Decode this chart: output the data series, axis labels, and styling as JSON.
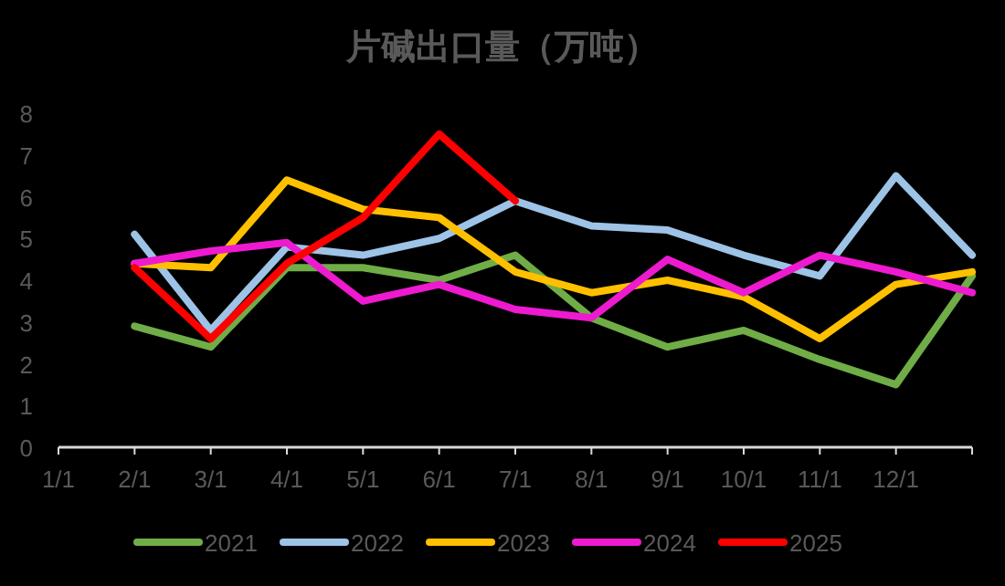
{
  "chart_data": {
    "type": "line",
    "title": "片碱出口量（万吨）",
    "categories": [
      "1/1",
      "2/1",
      "3/1",
      "4/1",
      "5/1",
      "6/1",
      "7/1",
      "8/1",
      "9/1",
      "10/1",
      "11/1",
      "12/1",
      null
    ],
    "ylim": [
      0,
      8
    ],
    "yticks": [
      0,
      1,
      2,
      3,
      4,
      5,
      6,
      7,
      8
    ],
    "series": [
      {
        "name": "2021",
        "color": "#70ad47",
        "values": [
          null,
          2.9,
          2.4,
          4.3,
          4.3,
          4.0,
          4.6,
          3.1,
          2.4,
          2.8,
          2.1,
          1.5,
          4.1
        ]
      },
      {
        "name": "2022",
        "color": "#9dc3e6",
        "values": [
          null,
          5.1,
          2.8,
          4.8,
          4.6,
          5.0,
          5.9,
          5.3,
          5.2,
          4.6,
          4.1,
          6.5,
          4.6
        ]
      },
      {
        "name": "2023",
        "color": "#ffc000",
        "values": [
          null,
          4.4,
          4.3,
          6.4,
          5.7,
          5.5,
          4.2,
          3.7,
          4.0,
          3.6,
          2.6,
          3.9,
          4.2
        ]
      },
      {
        "name": "2024",
        "color": "#ee1ad0",
        "values": [
          null,
          4.4,
          4.7,
          4.9,
          3.5,
          3.9,
          3.3,
          3.1,
          4.5,
          3.7,
          4.6,
          4.2,
          3.7
        ]
      },
      {
        "name": "2025",
        "color": "#ff0000",
        "values": [
          null,
          4.3,
          2.6,
          4.4,
          5.5,
          7.5,
          5.9,
          null,
          null,
          null,
          null,
          null,
          null
        ]
      }
    ],
    "legend": "bottom",
    "grid": false,
    "marker": "none",
    "line_style": "solid"
  }
}
